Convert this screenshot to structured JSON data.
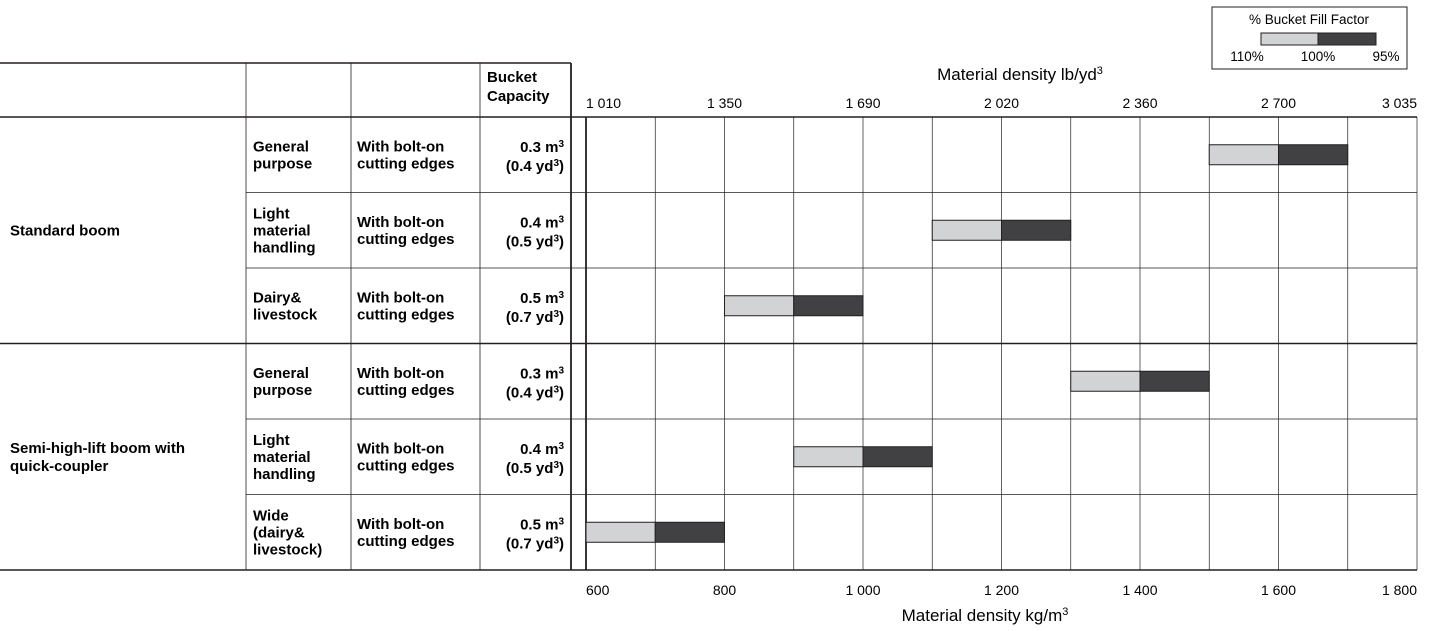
{
  "chart_data": {
    "type": "bar",
    "title": "",
    "top_axis": {
      "label": "Material density lb/yd",
      "label_sup": "3",
      "ticks": [
        "1 010",
        "1 350",
        "1 690",
        "2 020",
        "2 360",
        "2 700",
        "3 035"
      ]
    },
    "bottom_axis": {
      "label": "Material density kg/m",
      "label_sup": "3",
      "ticks": [
        "600",
        "800",
        "1 000",
        "1 200",
        "1 400",
        "1 600",
        "1 800"
      ],
      "range": [
        600,
        1800
      ]
    },
    "column_header": {
      "line1": "Bucket",
      "line2": "Capacity"
    },
    "legend": {
      "title": "% Bucket Fill Factor",
      "labels": [
        "110%",
        "100%",
        "95%"
      ],
      "colors": {
        "light": "#d1d3d5",
        "dark": "#414042"
      }
    },
    "groups": [
      {
        "name": "Standard boom",
        "rows": [
          {
            "type": [
              "General",
              "purpose"
            ],
            "edge": [
              "With bolt-on",
              "cutting edges"
            ],
            "cap_m3": "0.3 m",
            "cap_yd3": "(0.4 yd",
            "fill_110": 1500,
            "fill_100": 1600,
            "fill_95": 1700
          },
          {
            "type": [
              "Light",
              "material",
              "handling"
            ],
            "edge": [
              "With bolt-on",
              "cutting edges"
            ],
            "cap_m3": "0.4 m",
            "cap_yd3": "(0.5 yd",
            "fill_110": 1100,
            "fill_100": 1200,
            "fill_95": 1300
          },
          {
            "type": [
              "Dairy&",
              "livestock"
            ],
            "edge": [
              "With bolt-on",
              "cutting edges"
            ],
            "cap_m3": "0.5 m",
            "cap_yd3": "(0.7 yd",
            "fill_110": 800,
            "fill_100": 900,
            "fill_95": 1000
          }
        ]
      },
      {
        "name": "Semi-high-lift boom with quick-coupler",
        "name_lines": [
          "Semi-high-lift boom with",
          "quick-coupler"
        ],
        "rows": [
          {
            "type": [
              "General",
              "purpose"
            ],
            "edge": [
              "With bolt-on",
              "cutting edges"
            ],
            "cap_m3": "0.3 m",
            "cap_yd3": "(0.4 yd",
            "fill_110": 1300,
            "fill_100": 1400,
            "fill_95": 1500
          },
          {
            "type": [
              "Light",
              "material",
              "handling"
            ],
            "edge": [
              "With bolt-on",
              "cutting edges"
            ],
            "cap_m3": "0.4 m",
            "cap_yd3": "(0.5 yd",
            "fill_110": 900,
            "fill_100": 1000,
            "fill_95": 1100
          },
          {
            "type": [
              "Wide",
              "(dairy&",
              "livestock)"
            ],
            "edge": [
              "With bolt-on",
              "cutting edges"
            ],
            "cap_m3": "0.5 m",
            "cap_yd3": "(0.7 yd",
            "fill_110": 600,
            "fill_100": 700,
            "fill_95": 800
          }
        ]
      }
    ]
  }
}
